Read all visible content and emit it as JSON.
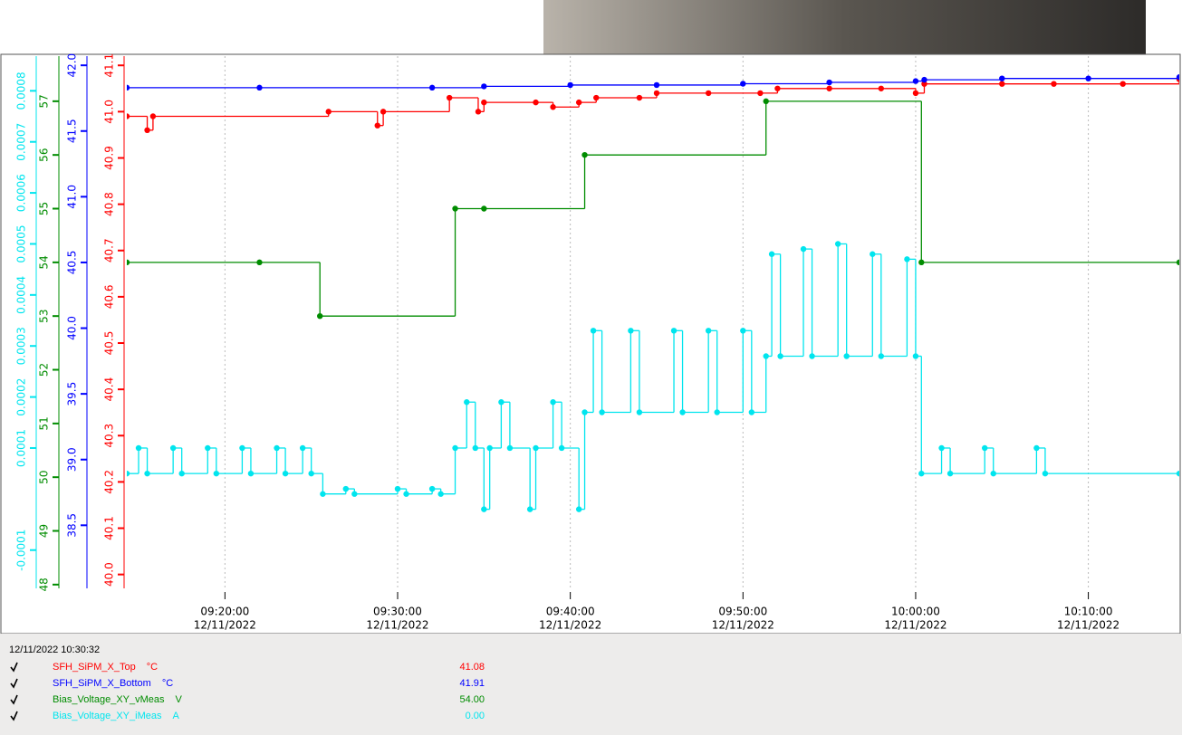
{
  "chart_data": {
    "type": "step",
    "xlim": [
      "09:14:19",
      "10:15:16"
    ],
    "xticks": [
      {
        "value": "09:20:00",
        "label": "09:20:00",
        "date": "12/11/2022"
      },
      {
        "value": "09:30:00",
        "label": "09:30:00",
        "date": "12/11/2022"
      },
      {
        "value": "09:40:00",
        "label": "09:40:00",
        "date": "12/11/2022"
      },
      {
        "value": "09:50:00",
        "label": "09:50:00",
        "date": "12/11/2022"
      },
      {
        "value": "10:00:00",
        "label": "10:00:00",
        "date": "12/11/2022"
      },
      {
        "value": "10:10:00",
        "label": "10:10:00",
        "date": "12/11/2022"
      }
    ],
    "grid": true,
    "legend_time": "12/11/2022 10:30:32",
    "series": [
      {
        "name": "SFH_SiPM_X_Top",
        "unit": "°C",
        "color": "#ff0000",
        "current": "41.08",
        "ylim": [
          39.97,
          41.12
        ],
        "yticks": [
          {
            "value": 40.0,
            "label": "40.0"
          },
          40.1,
          40.2,
          40.3,
          40.4,
          40.5,
          40.6,
          40.7,
          40.8,
          40.9,
          {
            "value": 41.0,
            "label": "41.0"
          },
          41.1
        ],
        "x": [
          "09:14:19",
          "09:15:30",
          "09:15:50",
          "09:26:00",
          "09:28:50",
          "09:29:10",
          "09:33:00",
          "09:34:40",
          "09:35:00",
          "09:38:00",
          "09:39:00",
          "09:40:30",
          "09:41:30",
          "09:44:00",
          "09:45:00",
          "09:48:00",
          "09:51:00",
          "09:52:00",
          "09:55:00",
          "09:58:00",
          "10:00:00",
          "10:00:30",
          "10:05:00",
          "10:08:00",
          "10:12:00",
          "10:15:16"
        ],
        "values": [
          40.99,
          40.96,
          40.99,
          41.0,
          40.97,
          41.0,
          41.03,
          41.0,
          41.02,
          41.02,
          41.01,
          41.02,
          41.03,
          41.03,
          41.04,
          41.04,
          41.04,
          41.05,
          41.05,
          41.05,
          41.04,
          41.06,
          41.06,
          41.06,
          41.06,
          41.07
        ]
      },
      {
        "name": "SFH_SiPM_X_Bottom",
        "unit": "°C",
        "color": "#0000ff",
        "current": "41.91",
        "ylim": [
          38.02,
          42.07
        ],
        "yticks": [
          38.5,
          {
            "value": 39.0,
            "label": "39.0"
          },
          39.5,
          {
            "value": 40.0,
            "label": "40.0"
          },
          40.5,
          {
            "value": 41.0,
            "label": "41.0"
          },
          41.5,
          {
            "value": 42.0,
            "label": "42.0"
          }
        ],
        "x": [
          "09:14:19",
          "09:22:00",
          "09:32:00",
          "09:35:00",
          "09:40:00",
          "09:45:00",
          "09:50:00",
          "09:55:00",
          "10:00:00",
          "10:00:30",
          "10:05:00",
          "10:10:00",
          "10:15:16"
        ],
        "values": [
          41.83,
          41.83,
          41.83,
          41.84,
          41.85,
          41.85,
          41.86,
          41.87,
          41.88,
          41.89,
          41.9,
          41.9,
          41.91
        ]
      },
      {
        "name": "Bias_Voltage_XY_vMeas",
        "unit": "V",
        "color": "#008c00",
        "current": "54.00",
        "ylim": [
          47.93,
          57.84
        ],
        "yticks": [
          48,
          49,
          50,
          51,
          52,
          53,
          54,
          55,
          56,
          57
        ],
        "x": [
          "09:14:19",
          "09:22:00",
          "09:25:30",
          "09:33:20",
          "09:35:00",
          "09:40:50",
          "09:51:20",
          "10:00:20",
          "10:15:16"
        ],
        "values": [
          54,
          54,
          53,
          55,
          55,
          56,
          57,
          54,
          54
        ]
      },
      {
        "name": "Bias_Voltage_XY_iMeas",
        "unit": "A",
        "color": "#00e5ee",
        "current": "0.00",
        "ylim": [
          -0.000175,
          0.000868
        ],
        "yticks": [
          -0.0001,
          0.0001,
          0.0002,
          0.0003,
          0.0004,
          0.0005,
          0.0006,
          0.0007,
          0.0008
        ],
        "x": [
          "09:14:19",
          "09:15:00",
          "09:15:30",
          "09:17:00",
          "09:17:30",
          "09:19:00",
          "09:19:30",
          "09:21:00",
          "09:21:30",
          "09:23:00",
          "09:23:30",
          "09:24:30",
          "09:25:00",
          "09:25:40",
          "09:27:00",
          "09:27:30",
          "09:30:00",
          "09:30:30",
          "09:32:00",
          "09:32:30",
          "09:33:20",
          "09:34:00",
          "09:34:30",
          "09:35:00",
          "09:35:20",
          "09:36:00",
          "09:36:30",
          "09:37:40",
          "09:38:00",
          "09:39:00",
          "09:39:30",
          "09:40:30",
          "09:40:50",
          "09:41:20",
          "09:41:50",
          "09:43:30",
          "09:44:00",
          "09:46:00",
          "09:46:30",
          "09:48:00",
          "09:48:30",
          "09:50:00",
          "09:50:30",
          "09:51:20",
          "09:51:40",
          "09:52:10",
          "09:53:30",
          "09:54:00",
          "09:55:30",
          "09:56:00",
          "09:57:30",
          "09:58:00",
          "09:59:30",
          "10:00:00",
          "10:00:20",
          "10:01:30",
          "10:02:00",
          "10:04:00",
          "10:04:30",
          "10:07:00",
          "10:07:30",
          "10:15:16"
        ],
        "values": [
          5e-05,
          0.0001,
          5e-05,
          0.0001,
          5e-05,
          0.0001,
          5e-05,
          0.0001,
          5e-05,
          0.0001,
          5e-05,
          0.0001,
          5e-05,
          1e-05,
          2e-05,
          1e-05,
          2e-05,
          1e-05,
          2e-05,
          1e-05,
          0.0001,
          0.00019,
          0.0001,
          -2e-05,
          0.0001,
          0.00019,
          0.0001,
          -2e-05,
          0.0001,
          0.00019,
          0.0001,
          -2e-05,
          0.00017,
          0.00033,
          0.00017,
          0.00033,
          0.00017,
          0.00033,
          0.00017,
          0.00033,
          0.00017,
          0.00033,
          0.00017,
          0.00028,
          0.00048,
          0.00028,
          0.00049,
          0.00028,
          0.0005,
          0.00028,
          0.00048,
          0.00028,
          0.00047,
          0.00028,
          5e-05,
          0.0001,
          5e-05,
          0.0001,
          5e-05,
          0.0001,
          5e-05,
          5e-05
        ]
      }
    ]
  }
}
